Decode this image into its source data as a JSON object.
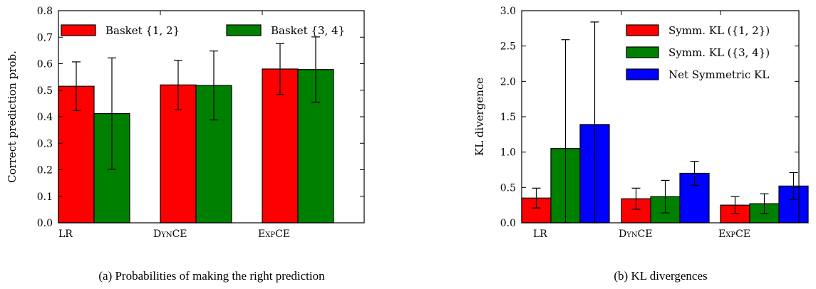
{
  "chart_data": [
    {
      "type": "bar",
      "caption": "(a) Probabilities of making the right prediction",
      "ylabel": "Correct prediction prob.",
      "xlabel": "",
      "ylim": [
        0,
        0.8
      ],
      "yticks": [
        "0.0",
        "0.1",
        "0.2",
        "0.3",
        "0.4",
        "0.5",
        "0.6",
        "0.7",
        "0.8"
      ],
      "categories": [
        "LR",
        "DynCE",
        "ExpCE"
      ],
      "legend_position": "top",
      "series": [
        {
          "name": "Basket {1, 2}",
          "color": "#ff0000",
          "values": [
            0.515,
            0.52,
            0.58
          ],
          "errors": [
            0.092,
            0.093,
            0.096
          ]
        },
        {
          "name": "Basket {3, 4}",
          "color": "#008000",
          "values": [
            0.412,
            0.518,
            0.578
          ],
          "errors": [
            0.21,
            0.13,
            0.123
          ]
        }
      ]
    },
    {
      "type": "bar",
      "caption": "(b) KL divergences",
      "ylabel": "KL divergence",
      "xlabel": "",
      "ylim": [
        0,
        3.0
      ],
      "yticks": [
        "0.0",
        "0.5",
        "1.0",
        "1.5",
        "2.0",
        "2.5",
        "3.0"
      ],
      "categories": [
        "LR",
        "DynCE",
        "ExpCE"
      ],
      "legend_position": "top-right",
      "series": [
        {
          "name": "Symm. KL ({1, 2})",
          "color": "#ff0000",
          "values": [
            0.35,
            0.34,
            0.25
          ],
          "errors": [
            0.14,
            0.15,
            0.12
          ]
        },
        {
          "name": "Symm. KL ({3, 4})",
          "color": "#008000",
          "values": [
            1.05,
            0.37,
            0.27
          ],
          "errors": [
            1.54,
            0.23,
            0.14
          ]
        },
        {
          "name": "Net Symmetric KL",
          "color": "#0000ff",
          "values": [
            1.39,
            0.7,
            0.52
          ],
          "errors": [
            1.45,
            0.17,
            0.19
          ]
        }
      ]
    }
  ]
}
